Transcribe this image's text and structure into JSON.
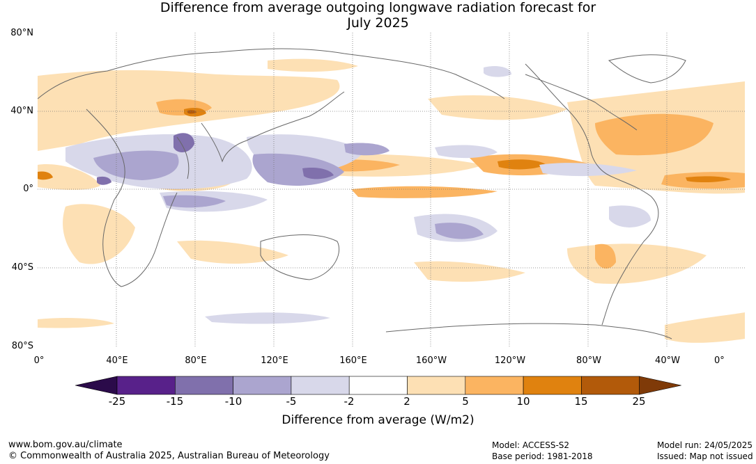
{
  "title_line1": "Difference from average outgoing longwave radiation forecast for",
  "title_line2": "July 2025",
  "lat_labels": [
    "80°N",
    "40°N",
    "0°",
    "40°S",
    "80°S"
  ],
  "lon_labels": [
    "0°",
    "40°E",
    "80°E",
    "120°E",
    "160°E",
    "160°W",
    "120°W",
    "80°W",
    "40°W",
    "0°"
  ],
  "colorbar": {
    "colors": [
      "#2b0b4a",
      "#58218a",
      "#8070ac",
      "#aba5cf",
      "#d8d8ea",
      "#ffffff",
      "#fde0b4",
      "#fbb461",
      "#e0820f",
      "#b25a0a",
      "#7f3a08"
    ],
    "tick_labels": [
      "-25",
      "-15",
      "-10",
      "-5",
      "-2",
      "2",
      "5",
      "10",
      "15",
      "25"
    ],
    "title": "Difference from average (W/m2)"
  },
  "footer": {
    "site": "www.bom.gov.au/climate",
    "copyright": "© Commonwealth of Australia 2025, Australian Bureau of Meteorology",
    "model": "Model: ACCESS-S2",
    "base_period": "Base period: 1981-2018",
    "model_run": "Model run: 24/05/2025",
    "issued": "Issued: Map not issued"
  }
}
